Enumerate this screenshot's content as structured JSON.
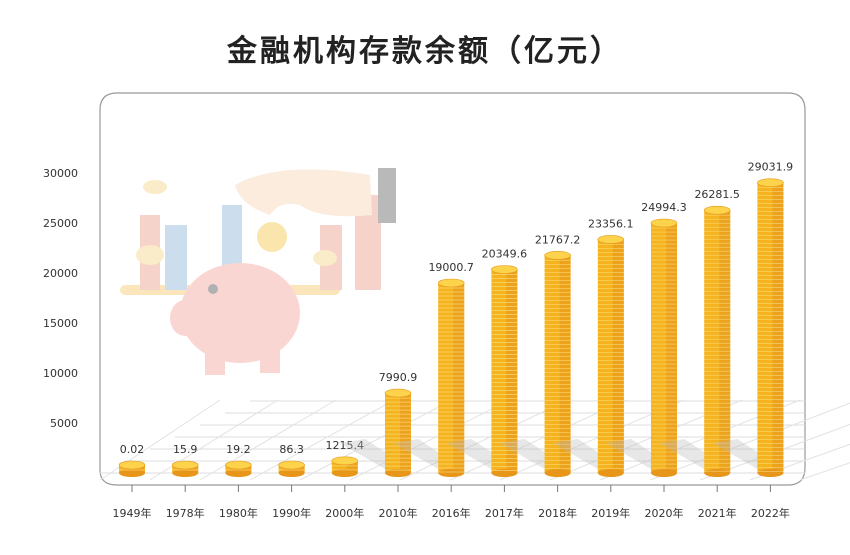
{
  "chart_data": {
    "type": "bar",
    "title": "金融机构存款余额（亿元）",
    "xlabel": "",
    "ylabel": "",
    "ylim": [
      0,
      30000
    ],
    "yticks": [
      5000,
      10000,
      15000,
      20000,
      25000,
      30000
    ],
    "grid": true,
    "categories": [
      "1949年",
      "1978年",
      "1980年",
      "1990年",
      "2000年",
      "2010年",
      "2016年",
      "2017年",
      "2018年",
      "2019年",
      "2020年",
      "2021年",
      "2022年"
    ],
    "values": [
      0.02,
      15.9,
      19.2,
      86.3,
      1215.4,
      7990.9,
      19000.7,
      20349.6,
      21767.2,
      23356.1,
      24994.3,
      26281.5,
      29031.9
    ],
    "value_labels": [
      "0.02",
      "15.9",
      "19.2",
      "86.3",
      "1215.4",
      "7990.9",
      "19000.7",
      "20349.6",
      "21767.2",
      "23356.1",
      "24994.3",
      "26281.5",
      "29031.9"
    ],
    "colors": {
      "coin": "#f5b41e",
      "coin_dark": "#e8961a",
      "coin_top": "#fcd34a",
      "frame": "#999999"
    }
  }
}
